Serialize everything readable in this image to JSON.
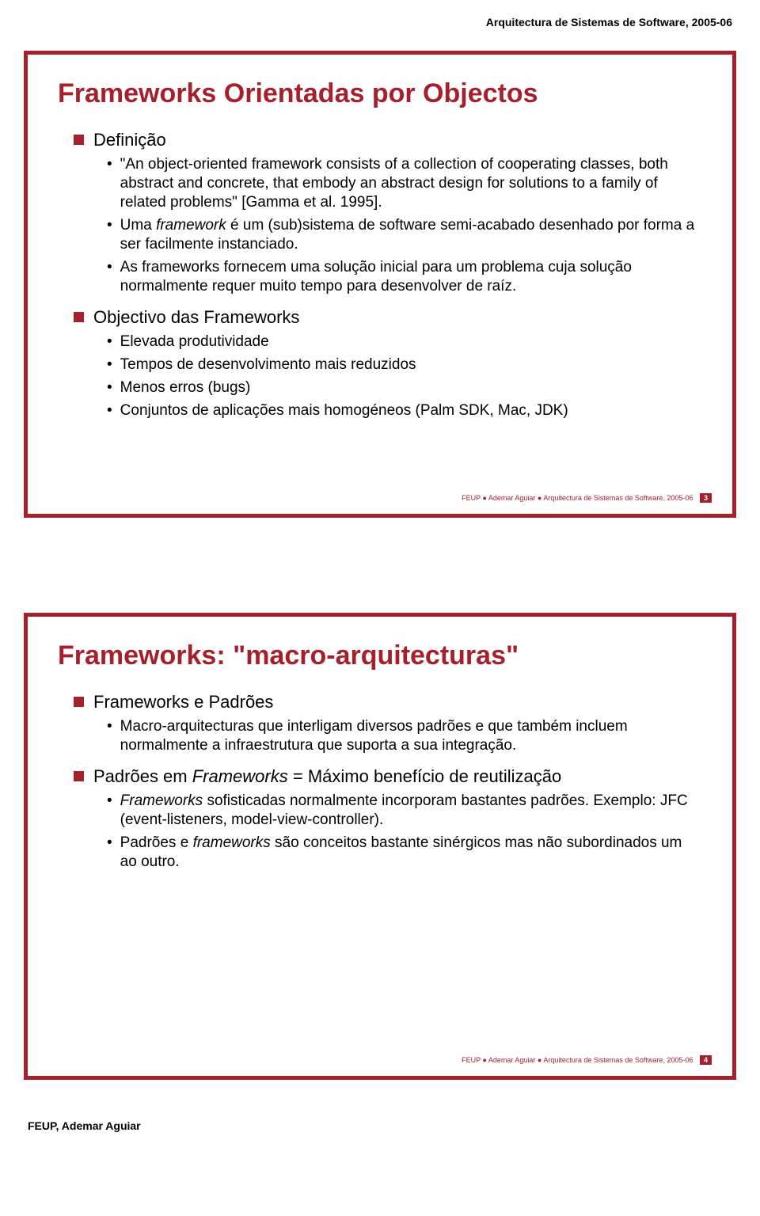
{
  "page_header": "Arquitectura de Sistemas de Software, 2005-06",
  "page_footer": "FEUP, Ademar Aguiar",
  "slide1": {
    "title": "Frameworks Orientadas por Objectos",
    "section1_label": "Definição",
    "s1_b1": "\"An object-oriented framework consists of a collection of cooperating classes, both abstract and concrete, that embody an abstract design for solutions to a family of related problems\" [Gamma et al. 1995].",
    "s1_b2_pre": "Uma ",
    "s1_b2_kw": "framework",
    "s1_b2_post": " é um (sub)sistema de software semi-acabado desenhado por forma a ser facilmente instanciado.",
    "s1_b3": "As frameworks fornecem uma solução inicial para um problema cuja solução normalmente requer muito tempo para desenvolver de raíz.",
    "section2_label": "Objectivo das Frameworks",
    "s2_b1": "Elevada produtividade",
    "s2_b2": "Tempos de desenvolvimento mais reduzidos",
    "s2_b3": "Menos erros (bugs)",
    "s2_b4": "Conjuntos de aplicações mais homogéneos (Palm SDK, Mac, JDK)",
    "footer_text": "FEUP ● Ademar Aguiar ● Arquitectura de Sistemas de Software, 2005-06",
    "page_num": "3"
  },
  "slide2": {
    "title": "Frameworks: \"macro-arquitecturas\"",
    "section1_label": "Frameworks e Padrões",
    "s1_b1": "Macro-arquitecturas que interligam diversos padrões e que também incluem normalmente a infraestrutura que suporta a sua integração.",
    "section2_pre": "Padrões em ",
    "section2_kw": "Frameworks",
    "section2_post": " = Máximo benefício de reutilização",
    "s2_b1_kw": "Frameworks",
    "s2_b1_post": " sofisticadas normalmente incorporam bastantes padrões. Exemplo: JFC (event-listeners, model-view-controller).",
    "s2_b2_pre": "Padrões e ",
    "s2_b2_kw": "frameworks",
    "s2_b2_post": " são conceitos bastante sinérgicos mas não subordinados um ao outro.",
    "footer_text": "FEUP ● Ademar Aguiar ● Arquitectura de Sistemas de Software, 2005-06",
    "page_num": "4"
  },
  "colors": {
    "brand_red": "#a6202b",
    "text": "#000000",
    "footer_gray": "#6b6b6b",
    "background": "#ffffff"
  }
}
